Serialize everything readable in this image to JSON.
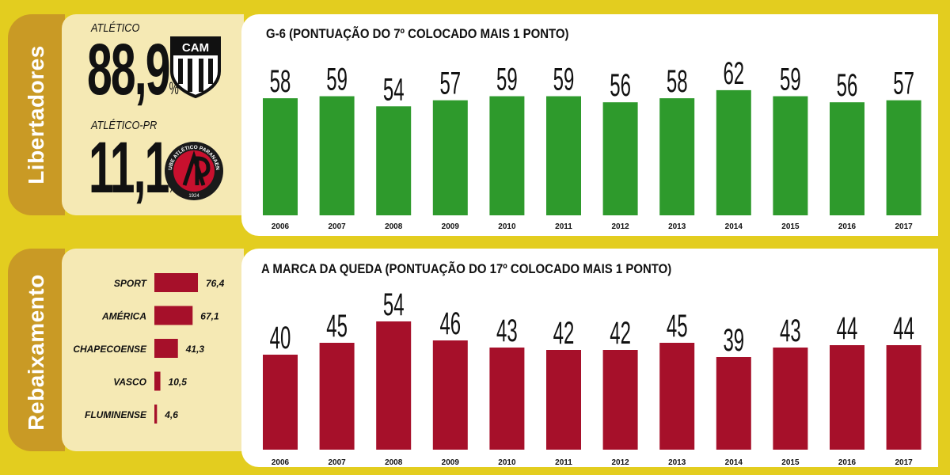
{
  "libertadores": {
    "side_label": "Libertadores",
    "teams": [
      {
        "name": "ATLÉTICO",
        "value": "88,9",
        "unit": "%",
        "crest_text": "CAM"
      },
      {
        "name": "ATLÉTICO-PR",
        "value": "11,1",
        "unit": "%",
        "crest_text": "CLUBE ATLÉTICO PARANAENSE",
        "crest_year": "1924"
      }
    ]
  },
  "rebaixamento": {
    "side_label": "Rebaixamento"
  },
  "colors": {
    "background": "#e3cd1f",
    "tab": "#c99a25",
    "info_box": "#f5e9b4",
    "green_bar": "#2e9a2c",
    "red_bar": "#a6102a"
  },
  "chart_data": [
    {
      "type": "bar",
      "title": "G-6 (PONTUAÇÃO DO 7º COLOCADO MAIS 1 PONTO)",
      "categories": [
        "2006",
        "2007",
        "2008",
        "2009",
        "2010",
        "2011",
        "2012",
        "2013",
        "2014",
        "2015",
        "2016",
        "2017"
      ],
      "values": [
        58,
        59,
        54,
        57,
        59,
        59,
        56,
        58,
        62,
        59,
        56,
        57
      ],
      "color": "#2e9a2c",
      "data_labels": true
    },
    {
      "type": "bar",
      "title": "A MARCA DA QUEDA (PONTUAÇÃO DO 17º COLOCADO MAIS 1 PONTO)",
      "categories": [
        "2006",
        "2007",
        "2008",
        "2009",
        "2010",
        "2011",
        "2012",
        "2013",
        "2014",
        "2015",
        "2016",
        "2017"
      ],
      "values": [
        40,
        45,
        54,
        46,
        43,
        42,
        42,
        45,
        39,
        43,
        44,
        44
      ],
      "color": "#a6102a",
      "data_labels": true
    },
    {
      "type": "bar",
      "orientation": "horizontal",
      "categories": [
        "SPORT",
        "AMÉRICA",
        "CHAPECOENSE",
        "VASCO",
        "FLUMINENSE"
      ],
      "values": [
        76.4,
        67.1,
        41.3,
        10.5,
        4.6
      ],
      "value_labels": [
        "76,4",
        "67,1",
        "41,3",
        "10,5",
        "4,6"
      ],
      "color": "#a6102a"
    }
  ]
}
